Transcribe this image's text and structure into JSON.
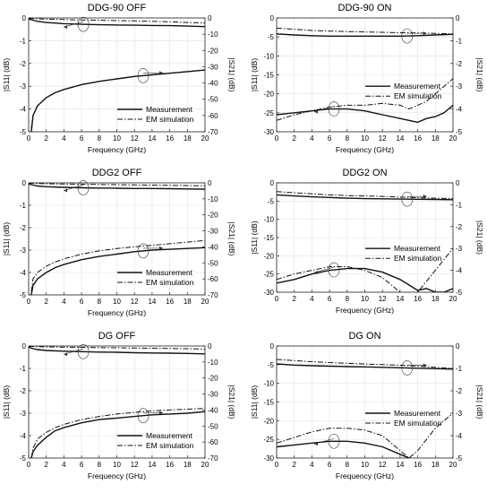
{
  "figure": {
    "series_names": [
      "Measurement",
      "EM simulation"
    ]
  },
  "chart_data": [
    {
      "type": "line",
      "title": "DDG-90 OFF",
      "xlabel": "Frequency (GHz)",
      "ylabel_left": "|S11| (dB)",
      "ylabel_right": "|S21| (dB)",
      "xlim": [
        0,
        20
      ],
      "xticks": [
        "0",
        "2",
        "4",
        "6",
        "8",
        "10",
        "12",
        "14",
        "16",
        "18",
        "20"
      ],
      "ylim_left": [
        -5,
        0
      ],
      "yticks_left": [
        "-5",
        "-4",
        "-3",
        "-2",
        "-1",
        "0"
      ],
      "ylim_right": [
        -70,
        0
      ],
      "yticks_right": [
        "-70",
        "-60",
        "-50",
        "-40",
        "-30",
        "-20",
        "-10",
        "0"
      ],
      "legend_position": "bottom-right",
      "series": [
        {
          "name": "Measurement",
          "group": "S21",
          "axis": "left",
          "x": [
            0,
            0.5,
            1,
            2,
            4,
            6,
            8,
            10,
            12,
            14,
            16,
            18,
            20
          ],
          "y": [
            -0.05,
            -0.1,
            -0.15,
            -0.2,
            -0.25,
            -0.28,
            -0.3,
            -0.31,
            -0.32,
            -0.33,
            -0.34,
            -0.36,
            -0.38
          ]
        },
        {
          "name": "EM simulation",
          "group": "S21",
          "axis": "left",
          "x": [
            0,
            2,
            4,
            6,
            8,
            10,
            12,
            14,
            16,
            18,
            20
          ],
          "y": [
            -0.02,
            -0.05,
            -0.07,
            -0.09,
            -0.1,
            -0.12,
            -0.13,
            -0.15,
            -0.17,
            -0.2,
            -0.22
          ]
        },
        {
          "name": "Measurement",
          "group": "S11",
          "axis": "right",
          "x": [
            0.3,
            0.5,
            1,
            2,
            3,
            4,
            6,
            8,
            10,
            12,
            14,
            16,
            18,
            20
          ],
          "y": [
            -70,
            -60,
            -54,
            -49,
            -46,
            -44,
            -41,
            -39,
            -37.5,
            -36,
            -35,
            -34,
            -33,
            -32
          ]
        },
        {
          "name": "EM simulation",
          "group": "S11",
          "axis": "right",
          "x": [
            0.3,
            0.5,
            1,
            2,
            3,
            4,
            6,
            8,
            10,
            12,
            14,
            16,
            18,
            20
          ],
          "y": [
            -68,
            -60,
            -54,
            -49,
            -46,
            -44,
            -41,
            -39,
            -37.5,
            -36,
            -35,
            -34,
            -33,
            -32
          ]
        }
      ]
    },
    {
      "type": "line",
      "title": "DDG-90 ON",
      "xlabel": "Frequency (GHz)",
      "ylabel_left": "|S11| (dB)",
      "ylabel_right": "|S21| (dB)",
      "xlim": [
        0,
        20
      ],
      "xticks": [
        "0",
        "2",
        "4",
        "6",
        "8",
        "10",
        "12",
        "14",
        "16",
        "18",
        "20"
      ],
      "ylim_left": [
        -30,
        0
      ],
      "yticks_left": [
        "-30",
        "-25",
        "-20",
        "-15",
        "-10",
        "-5",
        "0"
      ],
      "ylim_right": [
        -5,
        0
      ],
      "yticks_right": [
        "-5",
        "-4",
        "-3",
        "-2",
        "-1",
        "0"
      ],
      "legend_position": "middle-right",
      "series": [
        {
          "name": "Measurement",
          "group": "S21",
          "axis": "right",
          "x": [
            0,
            2,
            4,
            6,
            8,
            10,
            12,
            14,
            16,
            18,
            20
          ],
          "y": [
            -0.7,
            -0.75,
            -0.78,
            -0.8,
            -0.8,
            -0.8,
            -0.8,
            -0.8,
            -0.78,
            -0.75,
            -0.72
          ]
        },
        {
          "name": "EM simulation",
          "group": "S21",
          "axis": "right",
          "x": [
            0,
            2,
            4,
            6,
            8,
            10,
            12,
            14,
            16,
            18,
            20
          ],
          "y": [
            -0.45,
            -0.5,
            -0.55,
            -0.58,
            -0.6,
            -0.62,
            -0.63,
            -0.65,
            -0.66,
            -0.68,
            -0.7
          ]
        },
        {
          "name": "Measurement",
          "group": "S11",
          "axis": "left",
          "x": [
            0,
            2,
            4,
            6,
            8,
            10,
            12,
            14,
            15,
            16,
            17,
            18,
            19,
            20
          ],
          "y": [
            -25.5,
            -25,
            -24.5,
            -24,
            -24,
            -24.5,
            -25.5,
            -26.5,
            -27,
            -27.5,
            -26.5,
            -26,
            -25,
            -23
          ]
        },
        {
          "name": "EM simulation",
          "group": "S11",
          "axis": "left",
          "x": [
            0,
            2,
            4,
            6,
            8,
            10,
            12,
            14,
            15,
            16,
            17,
            18,
            19,
            20
          ],
          "y": [
            -27,
            -25.5,
            -24.5,
            -23.5,
            -23,
            -23,
            -22.5,
            -23,
            -24,
            -23,
            -22,
            -20,
            -18,
            -16
          ]
        }
      ]
    },
    {
      "type": "line",
      "title": "DDG2 OFF",
      "xlabel": "Frequency (GHz)",
      "ylabel_left": "|S11| (dB)",
      "ylabel_right": "|S21| (dB)",
      "xlim": [
        0,
        20
      ],
      "xticks": [
        "0",
        "2",
        "4",
        "6",
        "8",
        "10",
        "12",
        "14",
        "16",
        "18",
        "20"
      ],
      "ylim_left": [
        -5,
        0
      ],
      "yticks_left": [
        "-5",
        "-4",
        "-3",
        "-2",
        "-1",
        "0"
      ],
      "ylim_right": [
        -70,
        0
      ],
      "yticks_right": [
        "-70",
        "-60",
        "-50",
        "-40",
        "-30",
        "-20",
        "-10",
        "0"
      ],
      "legend_position": "bottom-right",
      "series": [
        {
          "name": "Measurement",
          "group": "S21",
          "axis": "left",
          "x": [
            0,
            0.5,
            1,
            2,
            4,
            6,
            8,
            10,
            12,
            14,
            16,
            18,
            20
          ],
          "y": [
            -0.05,
            -0.1,
            -0.14,
            -0.17,
            -0.2,
            -0.22,
            -0.23,
            -0.24,
            -0.25,
            -0.25,
            -0.26,
            -0.27,
            -0.28
          ]
        },
        {
          "name": "EM simulation",
          "group": "S21",
          "axis": "left",
          "x": [
            0,
            2,
            4,
            6,
            8,
            10,
            12,
            14,
            16,
            18,
            20
          ],
          "y": [
            -0.02,
            -0.04,
            -0.05,
            -0.06,
            -0.07,
            -0.08,
            -0.09,
            -0.1,
            -0.11,
            -0.12,
            -0.13
          ]
        },
        {
          "name": "Measurement",
          "group": "S11",
          "axis": "right",
          "x": [
            0.3,
            0.5,
            1,
            2,
            3,
            4,
            6,
            8,
            10,
            12,
            14,
            16,
            18,
            20
          ],
          "y": [
            -70,
            -64,
            -60,
            -56,
            -53,
            -51,
            -48,
            -46,
            -44.5,
            -43,
            -42,
            -41.5,
            -41,
            -40.5
          ]
        },
        {
          "name": "EM simulation",
          "group": "S11",
          "axis": "right",
          "x": [
            0.3,
            0.5,
            1,
            2,
            3,
            4,
            6,
            8,
            10,
            12,
            14,
            16,
            18,
            20
          ],
          "y": [
            -68,
            -60,
            -56,
            -52,
            -49.5,
            -47.5,
            -44.5,
            -42.5,
            -41,
            -40,
            -39,
            -38,
            -37,
            -36
          ]
        }
      ]
    },
    {
      "type": "line",
      "title": "DDG2 ON",
      "xlabel": "Frequency (GHz)",
      "ylabel_left": "|S11| (dB)",
      "ylabel_right": "|S21| (dB)",
      "xlim": [
        0,
        20
      ],
      "xticks": [
        "0",
        "2",
        "4",
        "6",
        "8",
        "10",
        "12",
        "14",
        "16",
        "18",
        "20"
      ],
      "ylim_left": [
        -30,
        0
      ],
      "yticks_left": [
        "-30",
        "-25",
        "-20",
        "-15",
        "-10",
        "-5",
        "0"
      ],
      "ylim_right": [
        -5,
        0
      ],
      "yticks_right": [
        "-5",
        "-4",
        "-3",
        "-2",
        "-1",
        "0"
      ],
      "legend_position": "middle-right",
      "series": [
        {
          "name": "Measurement",
          "group": "S21",
          "axis": "right",
          "x": [
            0,
            2,
            4,
            6,
            8,
            10,
            12,
            14,
            16,
            18,
            20
          ],
          "y": [
            -0.55,
            -0.6,
            -0.64,
            -0.67,
            -0.7,
            -0.72,
            -0.73,
            -0.74,
            -0.75,
            -0.76,
            -0.77
          ]
        },
        {
          "name": "EM simulation",
          "group": "S21",
          "axis": "right",
          "x": [
            0,
            2,
            4,
            6,
            8,
            10,
            12,
            14,
            16,
            18,
            20
          ],
          "y": [
            -0.4,
            -0.45,
            -0.5,
            -0.55,
            -0.58,
            -0.6,
            -0.62,
            -0.65,
            -0.68,
            -0.7,
            -0.72
          ]
        },
        {
          "name": "Measurement",
          "group": "S11",
          "axis": "left",
          "x": [
            0,
            2,
            4,
            6,
            8,
            10,
            12,
            14,
            15,
            16,
            17,
            18,
            19,
            20
          ],
          "y": [
            -27.5,
            -26.5,
            -25,
            -24,
            -23.5,
            -23.5,
            -24.5,
            -26.5,
            -28,
            -29.5,
            -29,
            -30,
            -30,
            -29
          ]
        },
        {
          "name": "EM simulation",
          "group": "S11",
          "axis": "left",
          "x": [
            0,
            2,
            4,
            6,
            8,
            10,
            12,
            13,
            14,
            15,
            16,
            17,
            18,
            19,
            20
          ],
          "y": [
            -26.5,
            -25,
            -24,
            -23,
            -23,
            -24,
            -26,
            -28,
            -30,
            -31,
            -30,
            -27,
            -24,
            -21,
            -18
          ]
        }
      ]
    },
    {
      "type": "line",
      "title": "DG OFF",
      "xlabel": "Frequency (GHz)",
      "ylabel_left": "|S11| (dB)",
      "ylabel_right": "|S21| (dB)",
      "xlim": [
        0,
        20
      ],
      "xticks": [
        "0",
        "2",
        "4",
        "6",
        "8",
        "10",
        "12",
        "14",
        "16",
        "18",
        "20"
      ],
      "ylim_left": [
        -5,
        0
      ],
      "yticks_left": [
        "-5",
        "-4",
        "-3",
        "-2",
        "-1",
        "0"
      ],
      "ylim_right": [
        -70,
        0
      ],
      "yticks_right": [
        "-70",
        "-60",
        "-50",
        "-40",
        "-30",
        "-20",
        "-10",
        "0"
      ],
      "legend_position": "bottom-right",
      "series": [
        {
          "name": "Measurement",
          "group": "S21",
          "axis": "left",
          "x": [
            0,
            0.5,
            1,
            2,
            4,
            6,
            8,
            10,
            12,
            14,
            16,
            18,
            20
          ],
          "y": [
            -0.05,
            -0.12,
            -0.16,
            -0.2,
            -0.23,
            -0.25,
            -0.27,
            -0.28,
            -0.3,
            -0.31,
            -0.32,
            -0.33,
            -0.35
          ]
        },
        {
          "name": "EM simulation",
          "group": "S21",
          "axis": "left",
          "x": [
            0,
            2,
            4,
            6,
            8,
            10,
            12,
            14,
            16,
            18,
            20
          ],
          "y": [
            -0.02,
            -0.04,
            -0.05,
            -0.06,
            -0.07,
            -0.08,
            -0.09,
            -0.1,
            -0.11,
            -0.12,
            -0.14
          ]
        },
        {
          "name": "Measurement",
          "group": "S11",
          "axis": "right",
          "x": [
            0.3,
            0.5,
            1,
            2,
            3,
            4,
            6,
            8,
            10,
            12,
            14,
            16,
            18,
            20
          ],
          "y": [
            -70,
            -66,
            -62,
            -57,
            -53,
            -51,
            -48,
            -46,
            -45,
            -44,
            -43,
            -42.5,
            -42,
            -41
          ]
        },
        {
          "name": "EM simulation",
          "group": "S11",
          "axis": "right",
          "x": [
            0.3,
            0.5,
            1,
            2,
            3,
            4,
            6,
            8,
            10,
            12,
            14,
            16,
            18,
            20
          ],
          "y": [
            -70,
            -64,
            -58,
            -54,
            -51,
            -49,
            -46,
            -44,
            -42.5,
            -41.5,
            -40.5,
            -40,
            -39.5,
            -39
          ]
        }
      ]
    },
    {
      "type": "line",
      "title": "DG ON",
      "xlabel": "Frequency (GHz)",
      "ylabel_left": "|S11| (dB)",
      "ylabel_right": "|S21| (dB)",
      "xlim": [
        0,
        20
      ],
      "xticks": [
        "0",
        "2",
        "4",
        "6",
        "8",
        "10",
        "12",
        "14",
        "16",
        "18",
        "20"
      ],
      "ylim_left": [
        -30,
        0
      ],
      "yticks_left": [
        "-30",
        "-25",
        "-20",
        "-15",
        "-10",
        "-5",
        "0"
      ],
      "ylim_right": [
        -5,
        0
      ],
      "yticks_right": [
        "-5",
        "-4",
        "-3",
        "-2",
        "-1",
        "0"
      ],
      "legend_position": "middle-right",
      "series": [
        {
          "name": "Measurement",
          "group": "S21",
          "axis": "right",
          "x": [
            0,
            2,
            4,
            6,
            8,
            10,
            12,
            14,
            16,
            18,
            20
          ],
          "y": [
            -0.8,
            -0.85,
            -0.88,
            -0.9,
            -0.92,
            -0.93,
            -0.95,
            -0.97,
            -0.99,
            -1.01,
            -1.03
          ]
        },
        {
          "name": "EM simulation",
          "group": "S21",
          "axis": "right",
          "x": [
            0,
            2,
            4,
            6,
            8,
            10,
            12,
            14,
            16,
            18,
            20
          ],
          "y": [
            -0.6,
            -0.65,
            -0.7,
            -0.74,
            -0.77,
            -0.8,
            -0.83,
            -0.86,
            -0.9,
            -0.95,
            -1.0
          ]
        },
        {
          "name": "Measurement",
          "group": "S11",
          "axis": "left",
          "x": [
            0,
            2,
            4,
            6,
            8,
            10,
            12,
            14,
            16,
            17,
            18,
            19,
            20
          ],
          "y": [
            -27,
            -26.5,
            -26,
            -25.5,
            -25.5,
            -26,
            -27,
            -29,
            -31,
            -32,
            -33,
            -32,
            -31
          ]
        },
        {
          "name": "EM simulation",
          "group": "S11",
          "axis": "left",
          "x": [
            0,
            2,
            4,
            6,
            8,
            10,
            12,
            13,
            14,
            15,
            16,
            17,
            18,
            19,
            20
          ],
          "y": [
            -26,
            -24.5,
            -23,
            -22,
            -22,
            -22.5,
            -24,
            -26,
            -28,
            -30,
            -28,
            -25,
            -22,
            -20,
            -18
          ]
        }
      ]
    }
  ]
}
